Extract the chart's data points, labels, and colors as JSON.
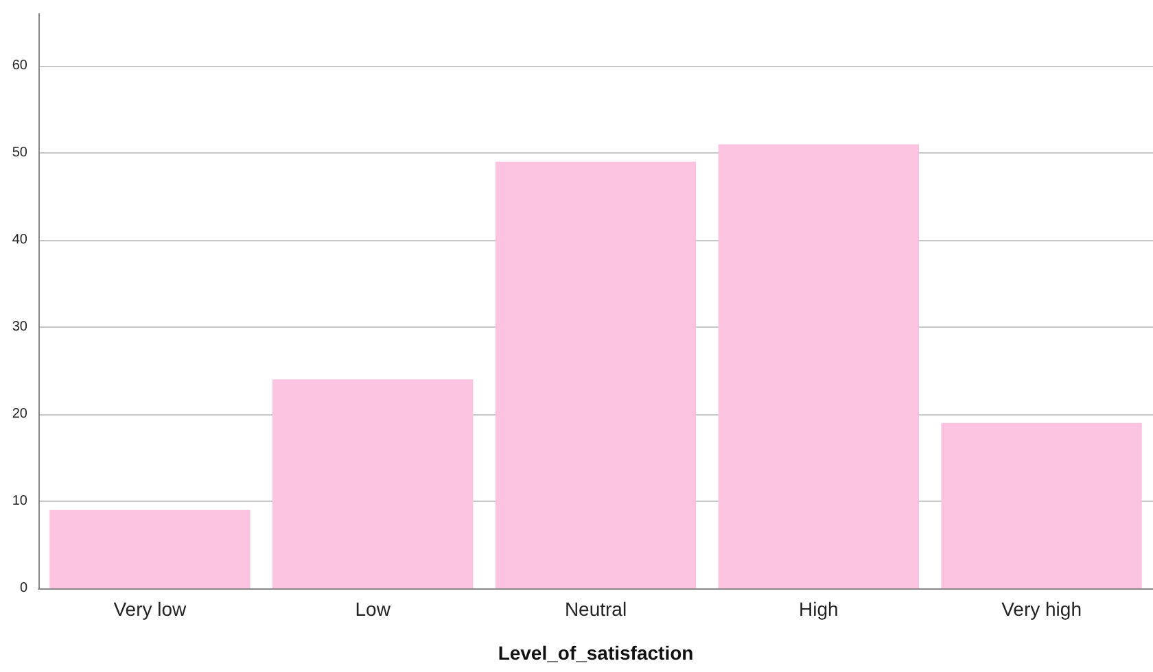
{
  "chart_data": {
    "type": "bar",
    "xlabel": "Level_of_satisfaction",
    "categories": [
      "Very low",
      "Low",
      "Neutral",
      "High",
      "Very high"
    ],
    "values": [
      9,
      24,
      49,
      51,
      19
    ],
    "color": "#fcc3e1",
    "ylim": [
      0,
      66
    ],
    "yticks": [
      0,
      10,
      20,
      30,
      40,
      50,
      60
    ],
    "grid": "y"
  }
}
